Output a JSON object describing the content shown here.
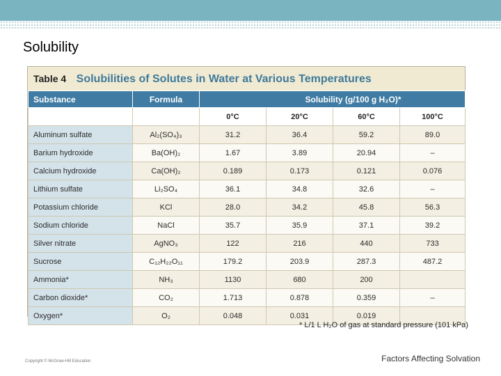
{
  "slide": {
    "title": "Solubility",
    "footer": "Factors Affecting Solvation",
    "copyright": "Copyright © McGraw-Hill Education"
  },
  "table": {
    "label": "Table 4",
    "title": "Solubilities of Solutes in Water at Various Temperatures",
    "headers": {
      "substance": "Substance",
      "formula": "Formula",
      "solubility": "Solubility (g/100 g H₂O)*"
    },
    "temperatures": [
      "0°C",
      "20°C",
      "60°C",
      "100°C"
    ],
    "rows": [
      {
        "substance": "Aluminum sulfate",
        "formula": "Al₂(SO₄)₃",
        "values": [
          "31.2",
          "36.4",
          "59.2",
          "89.0"
        ]
      },
      {
        "substance": "Barium hydroxide",
        "formula": "Ba(OH)₂",
        "values": [
          "1.67",
          "3.89",
          "20.94",
          "–"
        ]
      },
      {
        "substance": "Calcium hydroxide",
        "formula": "Ca(OH)₂",
        "values": [
          "0.189",
          "0.173",
          "0.121",
          "0.076"
        ]
      },
      {
        "substance": "Lithium sulfate",
        "formula": "Li₂SO₄",
        "values": [
          "36.1",
          "34.8",
          "32.6",
          "–"
        ]
      },
      {
        "substance": "Potassium chloride",
        "formula": "KCl",
        "values": [
          "28.0",
          "34.2",
          "45.8",
          "56.3"
        ]
      },
      {
        "substance": "Sodium chloride",
        "formula": "NaCl",
        "values": [
          "35.7",
          "35.9",
          "37.1",
          "39.2"
        ]
      },
      {
        "substance": "Silver nitrate",
        "formula": "AgNO₃",
        "values": [
          "122",
          "216",
          "440",
          "733"
        ]
      },
      {
        "substance": "Sucrose",
        "formula": "C₁₂H₂₂O₁₁",
        "values": [
          "179.2",
          "203.9",
          "287.3",
          "487.2"
        ]
      },
      {
        "substance": "Ammonia*",
        "formula": "NH₃",
        "values": [
          "1130",
          "680",
          "200",
          ""
        ]
      },
      {
        "substance": "Carbon dioxide*",
        "formula": "CO₂",
        "values": [
          "1.713",
          "0.878",
          "0.359",
          "–"
        ]
      },
      {
        "substance": "Oxygen*",
        "formula": "O₂",
        "values": [
          "0.048",
          "0.031",
          "0.019",
          ""
        ]
      }
    ],
    "footnote": "* L/1 L H₂O of gas at standard pressure (101 kPa)"
  }
}
